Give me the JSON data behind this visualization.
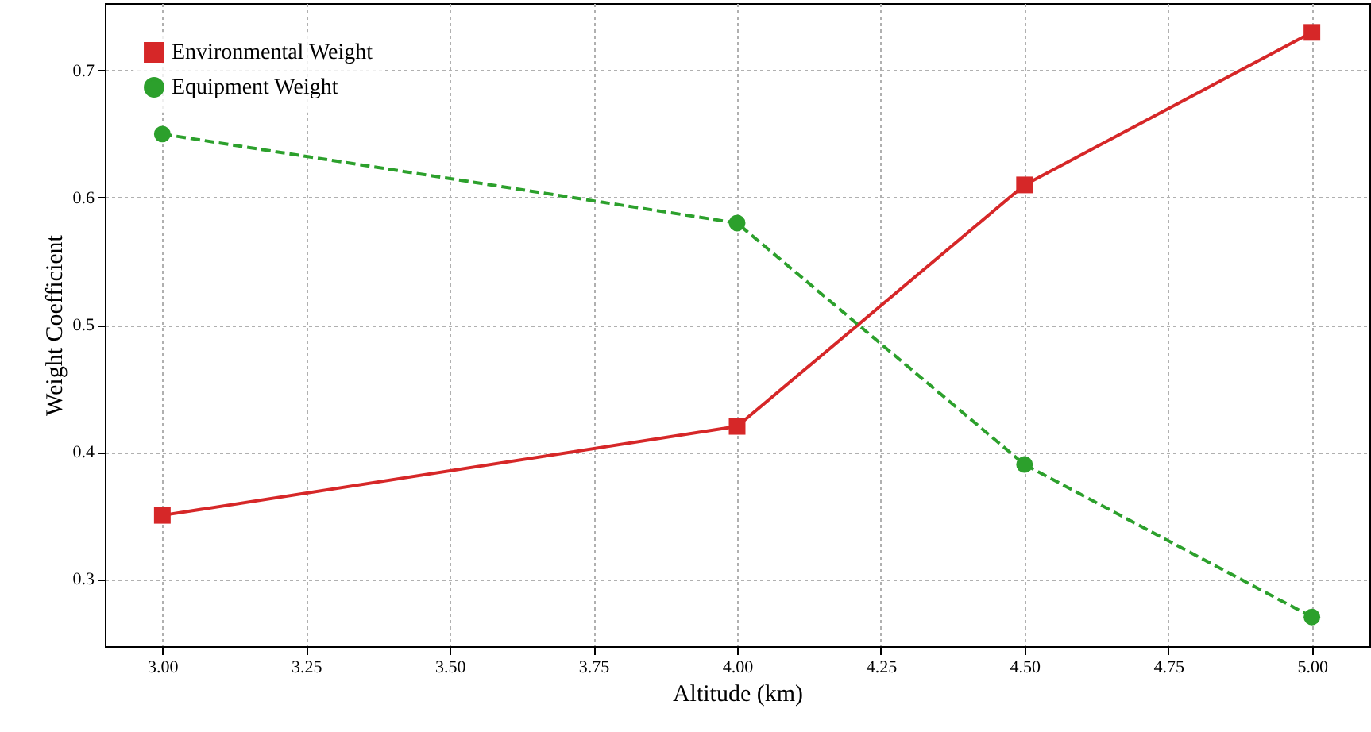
{
  "chart_data": {
    "type": "line",
    "xlabel": "Altitude (km)",
    "ylabel": "Weight Coefficient",
    "x": [
      3.0,
      4.0,
      4.5,
      5.0
    ],
    "series": [
      {
        "name": "Environmental Weight",
        "color": "#d62728",
        "marker": "square",
        "line_style": "solid",
        "values": [
          0.35,
          0.42,
          0.61,
          0.73
        ]
      },
      {
        "name": "Equipment Weight",
        "color": "#2ca02c",
        "marker": "circle",
        "line_style": "dashed",
        "values": [
          0.65,
          0.58,
          0.39,
          0.27
        ]
      }
    ],
    "xlim": [
      2.9,
      5.1
    ],
    "ylim": [
      0.247,
      0.753
    ],
    "xticks": [
      {
        "value": 3.0,
        "label": "3.00"
      },
      {
        "value": 3.25,
        "label": "3.25"
      },
      {
        "value": 3.5,
        "label": "3.50"
      },
      {
        "value": 3.75,
        "label": "3.75"
      },
      {
        "value": 4.0,
        "label": "4.00"
      },
      {
        "value": 4.25,
        "label": "4.25"
      },
      {
        "value": 4.5,
        "label": "4.50"
      },
      {
        "value": 4.75,
        "label": "4.75"
      },
      {
        "value": 5.0,
        "label": "5.00"
      }
    ],
    "yticks": [
      0.3,
      0.4,
      0.5,
      0.6,
      0.7
    ],
    "grid": true,
    "legend": "top left"
  }
}
